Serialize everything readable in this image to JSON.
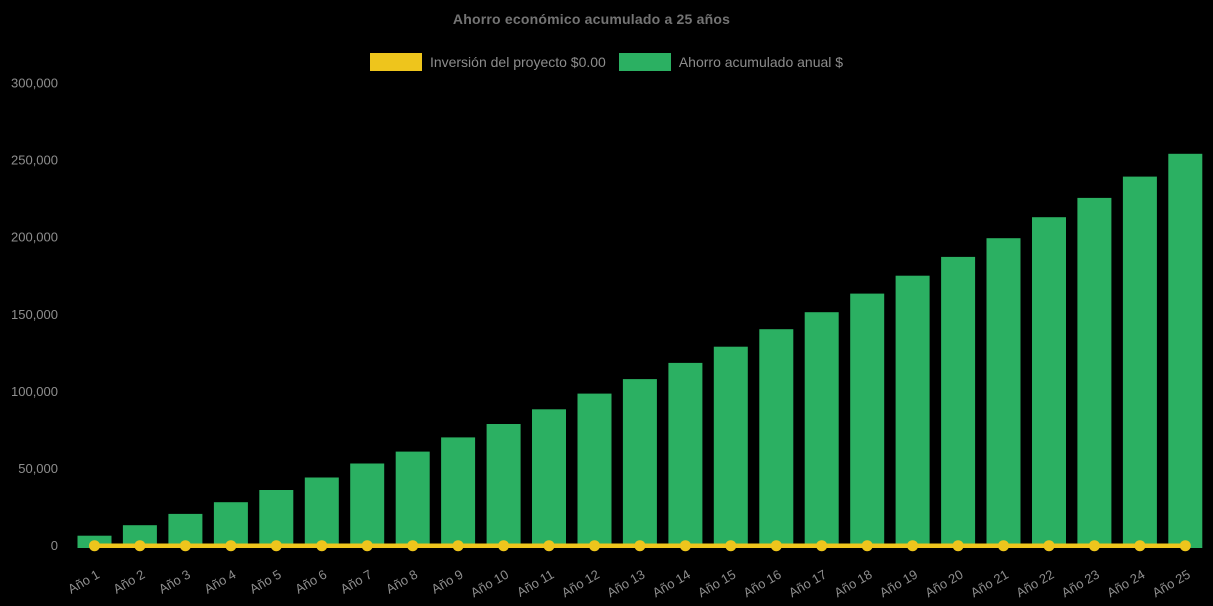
{
  "title": "Ahorro económico acumulado a 25 años",
  "legend": {
    "items": [
      {
        "label": "Inversión del proyecto $0.00",
        "color": "#eec51c"
      },
      {
        "label": "Ahorro acumulado anual $",
        "color": "#2bb062"
      }
    ]
  },
  "colors": {
    "background": "#000000",
    "bar": "#2bb062",
    "line": "#eec51c",
    "title_text": "#747474",
    "axis_text": "#8e8e8e",
    "legend_text": "#8c8c8c"
  },
  "y_axis": {
    "tick_labels": [
      "0",
      "50,000",
      "100,000",
      "150,000",
      "200,000",
      "250,000",
      "300,000"
    ]
  },
  "chart_data": {
    "type": "bar",
    "title": "Ahorro económico acumulado a 25 años",
    "categories": [
      "Año 1",
      "Año 2",
      "Año 3",
      "Año 4",
      "Año 5",
      "Año 6",
      "Año 7",
      "Año 8",
      "Año 9",
      "Año 10",
      "Año 11",
      "Año 12",
      "Año 13",
      "Año 14",
      "Año 15",
      "Año 16",
      "Año 17",
      "Año 18",
      "Año 19",
      "Año 20",
      "Año 21",
      "Año 22",
      "Año 23",
      "Año 24",
      "Año 25"
    ],
    "series": [
      {
        "name": "Inversión del proyecto $0.00",
        "type": "line",
        "color": "#eec51c",
        "values": [
          0,
          0,
          0,
          0,
          0,
          0,
          0,
          0,
          0,
          0,
          0,
          0,
          0,
          0,
          0,
          0,
          0,
          0,
          0,
          0,
          0,
          0,
          0,
          0,
          0
        ]
      },
      {
        "name": "Ahorro acumulado anual $",
        "type": "bar",
        "color": "#2bb062",
        "values": [
          6500,
          13300,
          20600,
          28200,
          36100,
          44200,
          53300,
          61000,
          70200,
          78900,
          88400,
          98600,
          108000,
          118500,
          129000,
          140300,
          151300,
          163400,
          175000,
          187200,
          199300,
          212900,
          225400,
          239200,
          254000
        ]
      }
    ],
    "xlabel": "",
    "ylabel": "",
    "ylim": [
      0,
      300000
    ],
    "yticks": [
      0,
      50000,
      100000,
      150000,
      200000,
      250000,
      300000
    ],
    "grid": false,
    "legend_position": "top"
  }
}
